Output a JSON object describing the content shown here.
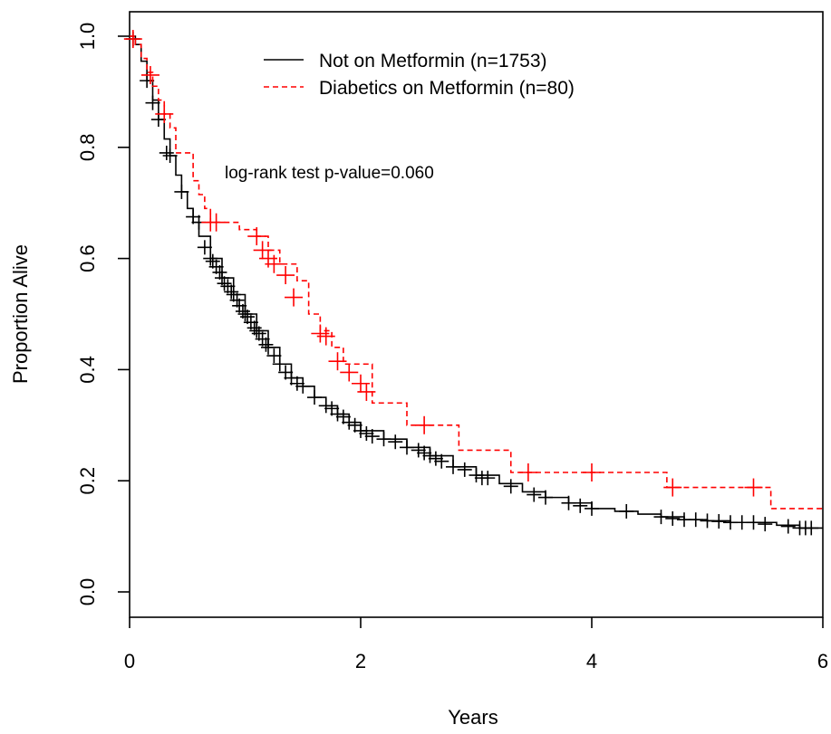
{
  "chart_data": {
    "type": "line",
    "subtype": "kaplan-meier step curves with censoring marks",
    "xlabel": "Years",
    "ylabel": "Proportion Alive",
    "xlim": [
      0,
      6
    ],
    "ylim": [
      0,
      1
    ],
    "x_ticks": [
      "0",
      "2",
      "4",
      "6"
    ],
    "y_ticks": [
      "0.0",
      "0.2",
      "0.4",
      "0.6",
      "0.8",
      "1.0"
    ],
    "grid": false,
    "legend_position": "top-center",
    "annotation": "log-rank test p-value=0.060",
    "series": [
      {
        "name": "Not on Metformin (n=1753)",
        "color": "#000000",
        "line_style": "solid",
        "points": [
          [
            0,
            1.0
          ],
          [
            0.05,
            0.985
          ],
          [
            0.1,
            0.955
          ],
          [
            0.15,
            0.92
          ],
          [
            0.2,
            0.885
          ],
          [
            0.25,
            0.85
          ],
          [
            0.3,
            0.815
          ],
          [
            0.35,
            0.785
          ],
          [
            0.4,
            0.75
          ],
          [
            0.45,
            0.72
          ],
          [
            0.5,
            0.69
          ],
          [
            0.55,
            0.665
          ],
          [
            0.6,
            0.64
          ],
          [
            0.7,
            0.6
          ],
          [
            0.8,
            0.565
          ],
          [
            0.9,
            0.535
          ],
          [
            1.0,
            0.5
          ],
          [
            1.1,
            0.47
          ],
          [
            1.2,
            0.44
          ],
          [
            1.3,
            0.41
          ],
          [
            1.4,
            0.385
          ],
          [
            1.5,
            0.37
          ],
          [
            1.6,
            0.35
          ],
          [
            1.7,
            0.335
          ],
          [
            1.8,
            0.32
          ],
          [
            1.9,
            0.305
          ],
          [
            2.0,
            0.29
          ],
          [
            2.2,
            0.275
          ],
          [
            2.4,
            0.26
          ],
          [
            2.6,
            0.245
          ],
          [
            2.8,
            0.225
          ],
          [
            3.0,
            0.21
          ],
          [
            3.2,
            0.195
          ],
          [
            3.4,
            0.18
          ],
          [
            3.6,
            0.17
          ],
          [
            3.8,
            0.16
          ],
          [
            4.0,
            0.15
          ],
          [
            4.2,
            0.145
          ],
          [
            4.4,
            0.14
          ],
          [
            4.6,
            0.135
          ],
          [
            4.8,
            0.13
          ],
          [
            5.0,
            0.128
          ],
          [
            5.2,
            0.125
          ],
          [
            5.4,
            0.125
          ],
          [
            5.6,
            0.12
          ],
          [
            5.8,
            0.115
          ],
          [
            6.0,
            0.115
          ]
        ],
        "censor_marks": [
          [
            0.03,
            0.995
          ],
          [
            0.15,
            0.92
          ],
          [
            0.2,
            0.88
          ],
          [
            0.25,
            0.85
          ],
          [
            0.32,
            0.79
          ],
          [
            0.35,
            0.785
          ],
          [
            0.45,
            0.72
          ],
          [
            0.55,
            0.675
          ],
          [
            0.6,
            0.665
          ],
          [
            0.65,
            0.62
          ],
          [
            0.7,
            0.6
          ],
          [
            0.72,
            0.595
          ],
          [
            0.75,
            0.585
          ],
          [
            0.78,
            0.575
          ],
          [
            0.8,
            0.565
          ],
          [
            0.82,
            0.555
          ],
          [
            0.85,
            0.55
          ],
          [
            0.88,
            0.54
          ],
          [
            0.9,
            0.535
          ],
          [
            0.93,
            0.525
          ],
          [
            0.95,
            0.515
          ],
          [
            0.98,
            0.505
          ],
          [
            1.0,
            0.5
          ],
          [
            1.02,
            0.495
          ],
          [
            1.05,
            0.485
          ],
          [
            1.08,
            0.475
          ],
          [
            1.1,
            0.47
          ],
          [
            1.12,
            0.465
          ],
          [
            1.15,
            0.455
          ],
          [
            1.18,
            0.445
          ],
          [
            1.2,
            0.44
          ],
          [
            1.25,
            0.425
          ],
          [
            1.3,
            0.41
          ],
          [
            1.35,
            0.395
          ],
          [
            1.4,
            0.385
          ],
          [
            1.45,
            0.375
          ],
          [
            1.5,
            0.37
          ],
          [
            1.6,
            0.35
          ],
          [
            1.7,
            0.335
          ],
          [
            1.75,
            0.33
          ],
          [
            1.8,
            0.32
          ],
          [
            1.85,
            0.315
          ],
          [
            1.9,
            0.305
          ],
          [
            1.95,
            0.3
          ],
          [
            2.0,
            0.29
          ],
          [
            2.05,
            0.285
          ],
          [
            2.1,
            0.28
          ],
          [
            2.2,
            0.275
          ],
          [
            2.3,
            0.27
          ],
          [
            2.4,
            0.26
          ],
          [
            2.5,
            0.255
          ],
          [
            2.55,
            0.25
          ],
          [
            2.6,
            0.245
          ],
          [
            2.65,
            0.24
          ],
          [
            2.7,
            0.235
          ],
          [
            2.8,
            0.225
          ],
          [
            2.9,
            0.22
          ],
          [
            3.0,
            0.21
          ],
          [
            3.05,
            0.205
          ],
          [
            3.1,
            0.205
          ],
          [
            3.3,
            0.19
          ],
          [
            3.5,
            0.175
          ],
          [
            3.6,
            0.17
          ],
          [
            3.8,
            0.16
          ],
          [
            3.9,
            0.155
          ],
          [
            4.0,
            0.15
          ],
          [
            4.3,
            0.145
          ],
          [
            4.6,
            0.135
          ],
          [
            4.7,
            0.132
          ],
          [
            4.8,
            0.13
          ],
          [
            4.9,
            0.13
          ],
          [
            5.0,
            0.128
          ],
          [
            5.1,
            0.127
          ],
          [
            5.2,
            0.125
          ],
          [
            5.3,
            0.125
          ],
          [
            5.4,
            0.125
          ],
          [
            5.5,
            0.122
          ],
          [
            5.7,
            0.118
          ],
          [
            5.8,
            0.115
          ],
          [
            5.85,
            0.115
          ],
          [
            5.9,
            0.115
          ]
        ]
      },
      {
        "name": "Diabetics on Metformin (n=80)",
        "color": "#ff0000",
        "line_style": "dashed",
        "points": [
          [
            0,
            1.0
          ],
          [
            0.05,
            0.985
          ],
          [
            0.1,
            0.96
          ],
          [
            0.15,
            0.935
          ],
          [
            0.2,
            0.91
          ],
          [
            0.25,
            0.885
          ],
          [
            0.3,
            0.86
          ],
          [
            0.35,
            0.835
          ],
          [
            0.4,
            0.79
          ],
          [
            0.5,
            0.79
          ],
          [
            0.55,
            0.74
          ],
          [
            0.6,
            0.715
          ],
          [
            0.65,
            0.69
          ],
          [
            0.7,
            0.665
          ],
          [
            0.95,
            0.665
          ],
          [
            0.95,
            0.652
          ],
          [
            1.1,
            0.652
          ],
          [
            1.1,
            0.64
          ],
          [
            1.2,
            0.64
          ],
          [
            1.2,
            0.615
          ],
          [
            1.3,
            0.615
          ],
          [
            1.3,
            0.59
          ],
          [
            1.45,
            0.59
          ],
          [
            1.45,
            0.56
          ],
          [
            1.55,
            0.56
          ],
          [
            1.55,
            0.5
          ],
          [
            1.65,
            0.5
          ],
          [
            1.65,
            0.47
          ],
          [
            1.75,
            0.47
          ],
          [
            1.75,
            0.44
          ],
          [
            1.85,
            0.44
          ],
          [
            1.85,
            0.41
          ],
          [
            2.1,
            0.41
          ],
          [
            2.1,
            0.34
          ],
          [
            2.4,
            0.34
          ],
          [
            2.4,
            0.3
          ],
          [
            2.85,
            0.3
          ],
          [
            2.85,
            0.255
          ],
          [
            3.3,
            0.255
          ],
          [
            3.3,
            0.215
          ],
          [
            4.65,
            0.215
          ],
          [
            4.65,
            0.188
          ],
          [
            5.55,
            0.188
          ],
          [
            5.55,
            0.15
          ],
          [
            6.0,
            0.15
          ]
        ],
        "censor_marks": [
          [
            0.03,
            0.995
          ],
          [
            0.18,
            0.93
          ],
          [
            0.3,
            0.86
          ],
          [
            0.7,
            0.665
          ],
          [
            0.75,
            0.665
          ],
          [
            1.1,
            0.64
          ],
          [
            1.15,
            0.615
          ],
          [
            1.2,
            0.6
          ],
          [
            1.25,
            0.59
          ],
          [
            1.35,
            0.57
          ],
          [
            1.42,
            0.53
          ],
          [
            1.65,
            0.465
          ],
          [
            1.7,
            0.46
          ],
          [
            1.8,
            0.415
          ],
          [
            1.9,
            0.395
          ],
          [
            2.0,
            0.375
          ],
          [
            2.05,
            0.36
          ],
          [
            2.55,
            0.3
          ],
          [
            3.45,
            0.215
          ],
          [
            4.0,
            0.215
          ],
          [
            4.7,
            0.188
          ],
          [
            5.4,
            0.188
          ]
        ]
      }
    ]
  }
}
